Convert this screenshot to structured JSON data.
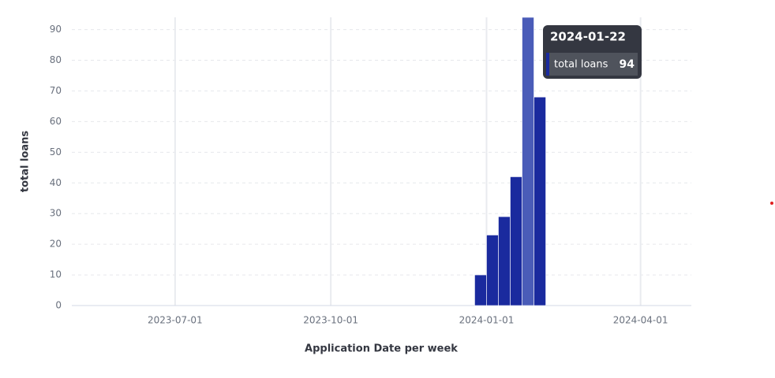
{
  "chart_data": {
    "type": "bar",
    "x": [
      "2023-12-25",
      "2024-01-01",
      "2024-01-08",
      "2024-01-15",
      "2024-01-22",
      "2024-01-29"
    ],
    "series": [
      {
        "name": "total loans",
        "color": "#1a2a9e",
        "values": [
          10,
          23,
          29,
          42,
          94,
          68
        ]
      }
    ],
    "highlight_color": "#4a5cb8",
    "xlabel": "Application Date per week",
    "ylabel": "total loans",
    "xlim": [
      "2023-05-01",
      "2024-05-01"
    ],
    "xticks": [
      "2023-07-01",
      "2023-10-01",
      "2024-01-01",
      "2024-04-01"
    ],
    "ylim": [
      0,
      94
    ],
    "yticks": [
      0,
      10,
      20,
      30,
      40,
      50,
      60,
      70,
      80,
      90
    ],
    "grid": true,
    "tooltip": {
      "title": "2024-01-22"
    }
  }
}
